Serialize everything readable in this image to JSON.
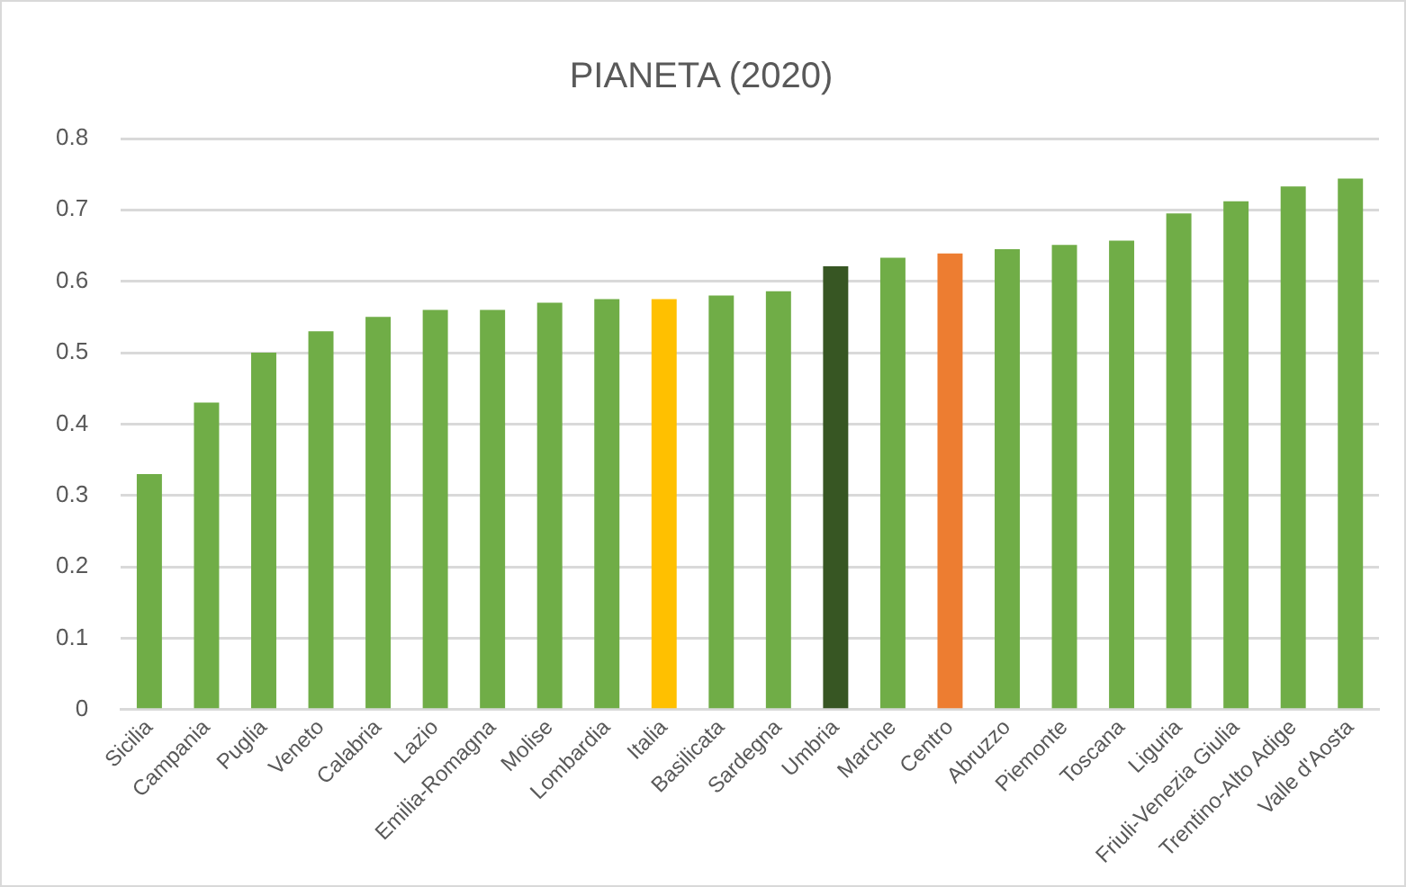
{
  "chart_data": {
    "type": "bar",
    "title": "PIANETA (2020)",
    "categories": [
      "Sicilia",
      "Campania",
      "Puglia",
      "Veneto",
      "Calabria",
      "Lazio",
      "Emilia-Romagna",
      "Molise",
      "Lombardia",
      "Italia",
      "Basilicata",
      "Sardegna",
      "Umbria",
      "Marche",
      "Centro",
      "Abruzzo",
      "Piemonte",
      "Toscana",
      "Liguria",
      "Friuli-Venezia Giulia",
      "Trentino-Alto Adige",
      "Valle d'Aosta"
    ],
    "values": [
      0.33,
      0.43,
      0.5,
      0.53,
      0.55,
      0.56,
      0.56,
      0.57,
      0.575,
      0.575,
      0.58,
      0.586,
      0.621,
      0.633,
      0.639,
      0.645,
      0.651,
      0.657,
      0.695,
      0.712,
      0.733,
      0.744
    ],
    "colors": [
      "#70ad47",
      "#70ad47",
      "#70ad47",
      "#70ad47",
      "#70ad47",
      "#70ad47",
      "#70ad47",
      "#70ad47",
      "#70ad47",
      "#ffc000",
      "#70ad47",
      "#70ad47",
      "#375623",
      "#70ad47",
      "#ed7d31",
      "#70ad47",
      "#70ad47",
      "#70ad47",
      "#70ad47",
      "#70ad47",
      "#70ad47",
      "#70ad47"
    ],
    "ylim": [
      0,
      0.8
    ],
    "yticks": [
      0,
      0.1,
      0.2,
      0.3,
      0.4,
      0.5,
      0.6,
      0.7,
      0.8
    ],
    "grid": "y",
    "legend": false
  }
}
